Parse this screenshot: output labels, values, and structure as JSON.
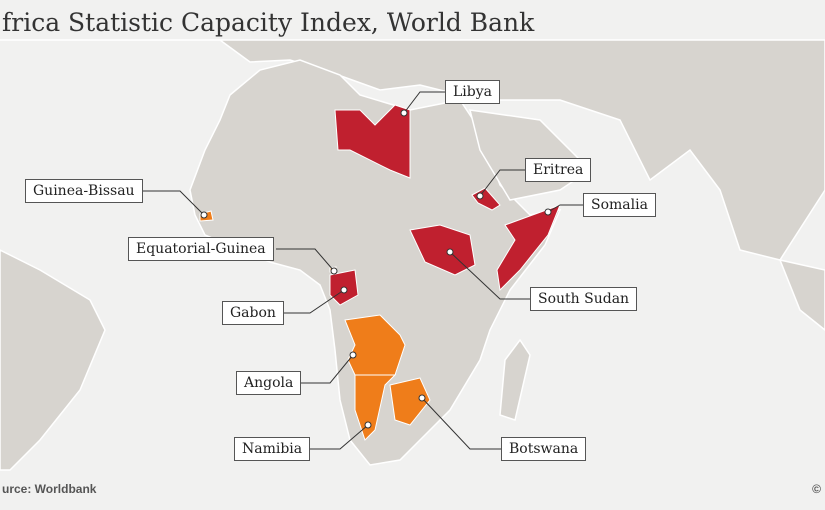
{
  "header": {
    "title": "frica Statistic Capacity Index, World Bank"
  },
  "countries": [
    {
      "name": "Libya"
    },
    {
      "name": "Eritrea"
    },
    {
      "name": "Somalia"
    },
    {
      "name": "South Sudan"
    },
    {
      "name": "Guinea-Bissau"
    },
    {
      "name": "Equatorial-Guinea"
    },
    {
      "name": "Gabon"
    },
    {
      "name": "Angola"
    },
    {
      "name": "Namibia"
    },
    {
      "name": "Botswana"
    }
  ],
  "footer": {
    "source": "urce: Worldbank",
    "credit": "©"
  }
}
